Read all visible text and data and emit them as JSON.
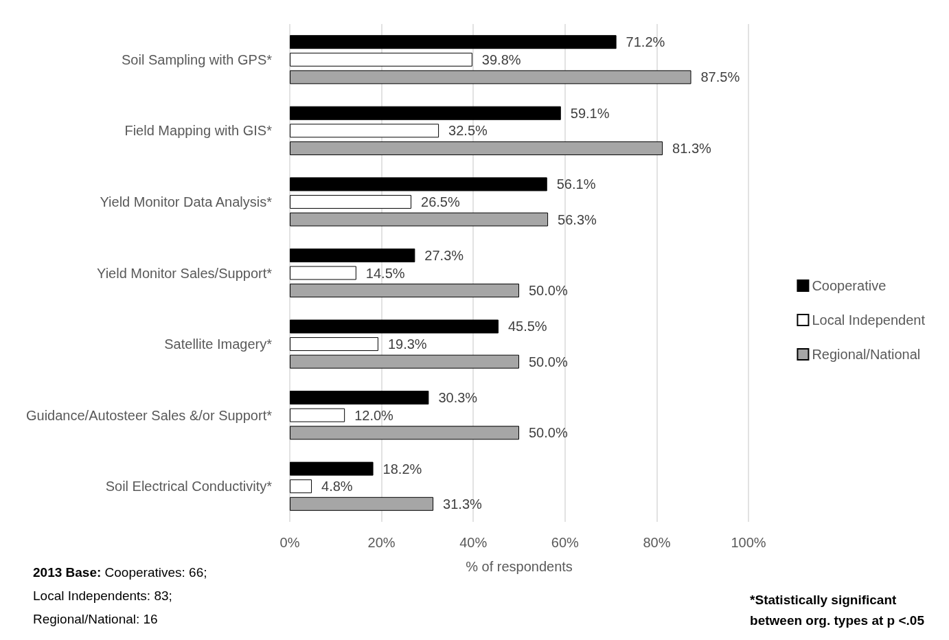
{
  "chart_data": {
    "type": "bar",
    "orientation": "horizontal",
    "xlabel": "% of respondents",
    "categories": [
      "Soil Sampling with GPS*",
      "Field Mapping with GIS*",
      "Yield Monitor Data Analysis*",
      "Yield Monitor Sales/Support*",
      "Satellite Imagery*",
      "Guidance/Autosteer Sales &/or Support*",
      "Soil Electrical Conductivity*"
    ],
    "series": [
      {
        "name": "Cooperative",
        "color": "#000000",
        "values": [
          71.2,
          59.1,
          56.1,
          27.3,
          45.5,
          30.3,
          18.2
        ],
        "value_labels": [
          "71.2%",
          "59.1%",
          "56.1%",
          "27.3%",
          "45.5%",
          "30.3%",
          "18.2%"
        ]
      },
      {
        "name": "Local Independent",
        "color": "#ffffff",
        "values": [
          39.8,
          32.5,
          26.5,
          14.5,
          19.3,
          12.0,
          4.8
        ],
        "value_labels": [
          "39.8%",
          "32.5%",
          "26.5%",
          "14.5%",
          "19.3%",
          "12.0%",
          "4.8%"
        ]
      },
      {
        "name": "Regional/National",
        "color": "#a6a6a6",
        "values": [
          87.5,
          81.3,
          56.3,
          50.0,
          50.0,
          50.0,
          31.3
        ],
        "value_labels": [
          "87.5%",
          "81.3%",
          "56.3%",
          "50.0%",
          "50.0%",
          "50.0%",
          "31.3%"
        ]
      }
    ],
    "xlim": [
      0,
      100
    ],
    "xticks": [
      {
        "value": 0,
        "label": "0%"
      },
      {
        "value": 20,
        "label": "20%"
      },
      {
        "value": 40,
        "label": "40%"
      },
      {
        "value": 60,
        "label": "60%"
      },
      {
        "value": 80,
        "label": "80%"
      },
      {
        "value": 100,
        "label": "100%"
      }
    ],
    "grid": "x",
    "legend": "right",
    "annotations": [
      "2013 Base: Cooperatives: 66;\nLocal Independents: 83;\nRegional/National: 16",
      "*Statistically significant\nbetween org. types at p <.05"
    ]
  }
}
